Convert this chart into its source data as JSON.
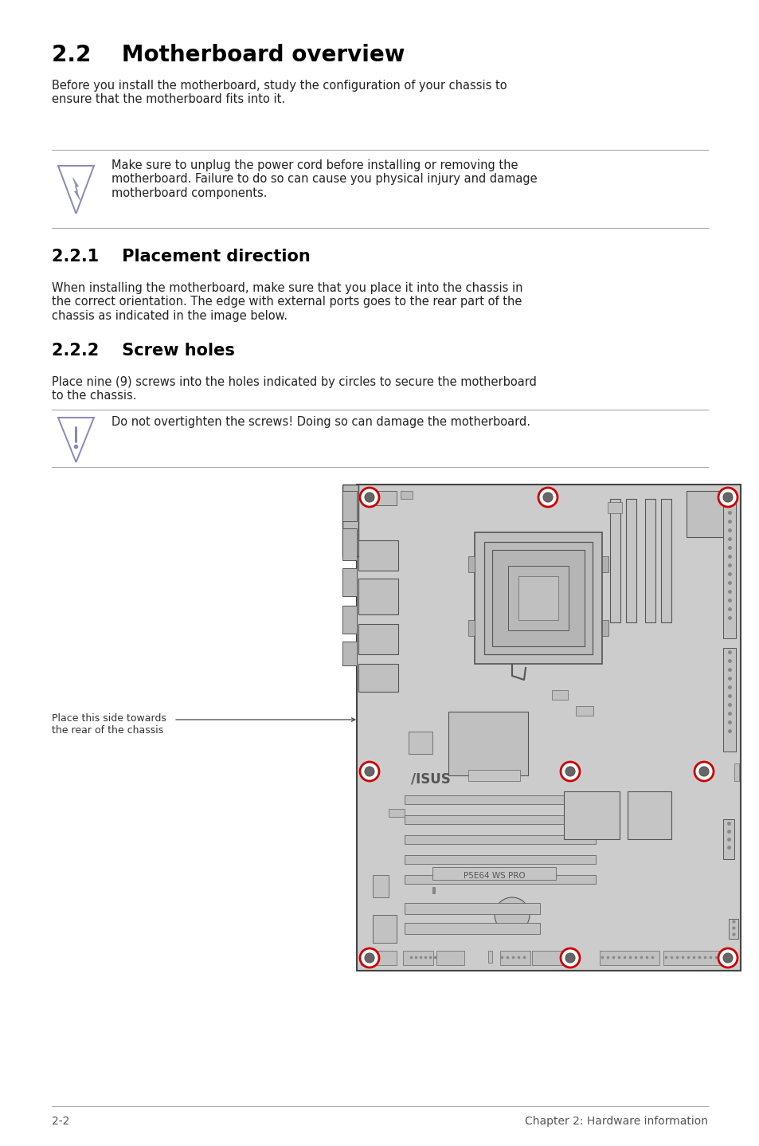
{
  "title": "2.2    Motherboard overview",
  "body_text1": "Before you install the motherboard, study the configuration of your chassis to\nensure that the motherboard fits into it.",
  "warning_text1": "Make sure to unplug the power cord before installing or removing the\nmotherboard. Failure to do so can cause you physical injury and damage\nmotherboard components.",
  "section221": "2.2.1    Placement direction",
  "section221_body": "When installing the motherboard, make sure that you place it into the chassis in\nthe correct orientation. The edge with external ports goes to the rear part of the\nchassis as indicated in the image below.",
  "section222": "2.2.2    Screw holes",
  "section222_body": "Place nine (9) screws into the holes indicated by circles to secure the motherboard\nto the chassis.",
  "warning_text2": "Do not overtighten the screws! Doing so can damage the motherboard.",
  "label_side": "Place this side towards\nthe rear of the chassis",
  "footer_left": "2-2",
  "footer_right": "Chapter 2: Hardware information",
  "bg_color": "#ffffff",
  "body_fontsize": 10.5,
  "title_fontsize": 20,
  "section_fontsize": 15,
  "mb_fill": "#cccccc",
  "mb_edge": "#444444",
  "screw_color": "#cc0000",
  "warn_color": "#8888bb",
  "line_color": "#aaaaaa",
  "text_color": "#000000",
  "body_color": "#222222",
  "footer_color": "#555555",
  "comp_fill": "#bbbbbb",
  "comp_edge": "#666666"
}
